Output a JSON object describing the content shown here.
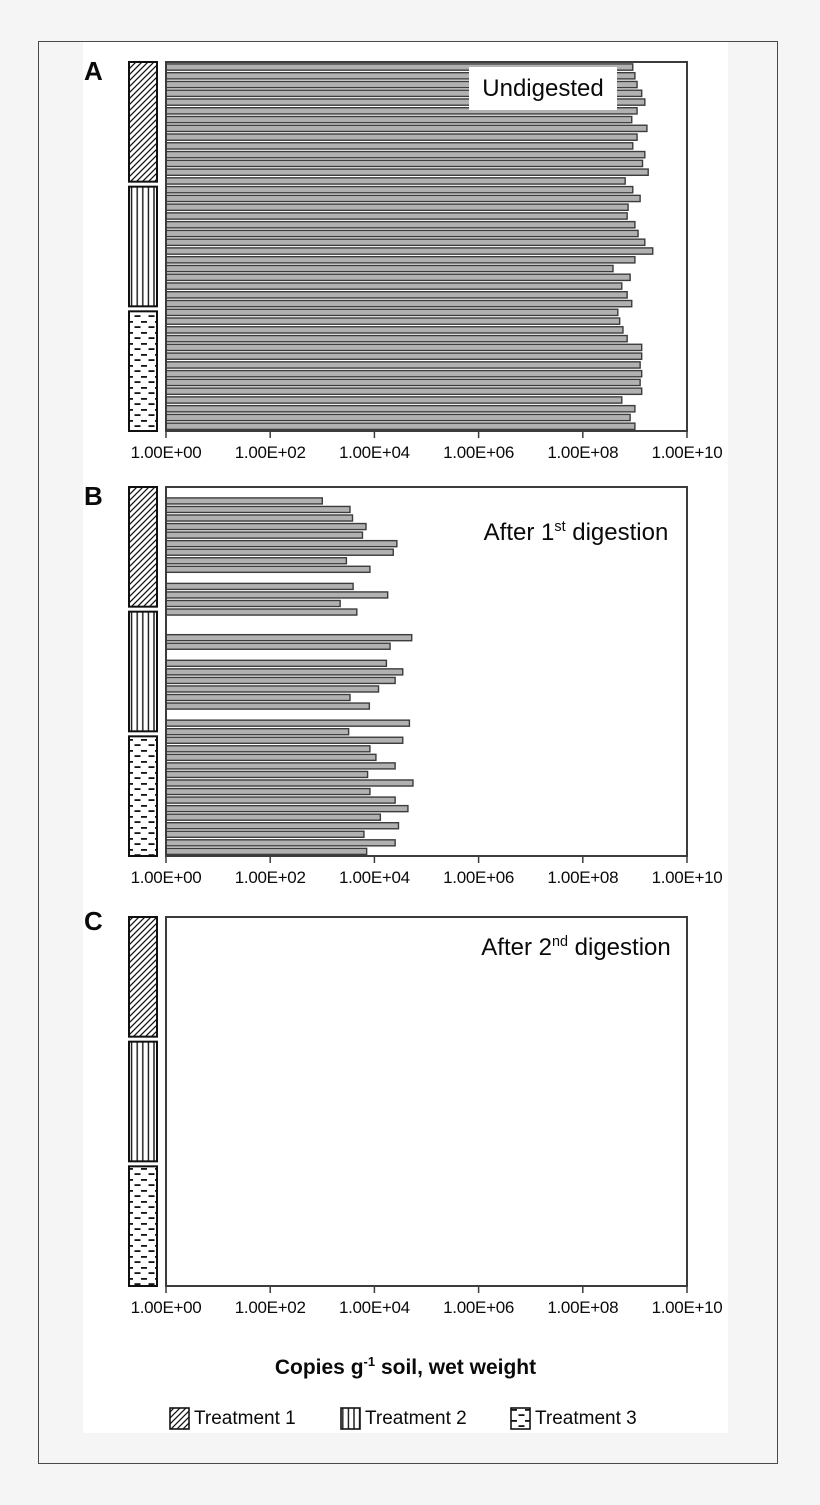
{
  "figure": {
    "panels": [
      {
        "letter": "A",
        "title": {
          "pre": "Undigested",
          "sup": "",
          "post": ""
        }
      },
      {
        "letter": "B",
        "title": {
          "pre": "After 1",
          "sup": "st",
          "post": " digestion"
        }
      },
      {
        "letter": "C",
        "title": {
          "pre": "After 2",
          "sup": "nd",
          "post": " digestion"
        }
      }
    ],
    "axis_title": {
      "pre": "Copies g",
      "sup": "-1",
      "post": " soil, wet weight"
    },
    "legend": [
      {
        "label": "Treatment 1",
        "pattern": "diagonal-hatch"
      },
      {
        "label": "Treatment 2",
        "pattern": "vertical-lines"
      },
      {
        "label": "Treatment 3",
        "pattern": "dashed-dots"
      }
    ],
    "colors": {
      "bar_fill": "#b1b1b1",
      "bar_stroke": "#3c3c3c",
      "frame": "#4a4a4a",
      "background": "#f5f5f6"
    }
  },
  "chart_data": [
    {
      "type": "bar",
      "orientation": "horizontal",
      "title": "Undigested",
      "xscale": "log",
      "xlim": [
        1,
        10000000000.0
      ],
      "xticks": [
        "1.00E+00",
        "1.00E+02",
        "1.00E+04",
        "1.00E+06",
        "1.00E+08",
        "1.00E+10"
      ],
      "xlabel": "Copies g-1 soil, wet weight",
      "grid": false,
      "legend_position": "bottom",
      "groups": [
        {
          "name": "Treatment 1",
          "pattern": "diagonal-hatch",
          "values": [
            910000000.0,
            1000000000.0,
            1100000000.0,
            1350000000.0,
            1550000000.0,
            1100000000.0,
            870000000.0,
            1700000000.0,
            1100000000.0,
            910000000.0,
            1550000000.0,
            1400000000.0,
            1800000000.0,
            650000000.0
          ]
        },
        {
          "name": "Treatment 2",
          "pattern": "vertical-lines",
          "values": [
            910000000.0,
            1260000000.0,
            740000000.0,
            710000000.0,
            1000000000.0,
            1150000000.0,
            1550000000.0,
            2200000000.0,
            1000000000.0,
            380000000.0,
            810000000.0,
            560000000.0,
            710000000.0,
            870000000.0
          ]
        },
        {
          "name": "Treatment 3",
          "pattern": "dashed-dots",
          "values": [
            470000000.0,
            510000000.0,
            590000000.0,
            710000000.0,
            1350000000.0,
            1350000000.0,
            1260000000.0,
            1350000000.0,
            1260000000.0,
            1350000000.0,
            560000000.0,
            1000000000.0,
            810000000.0,
            1000000000.0
          ]
        }
      ]
    },
    {
      "type": "bar",
      "orientation": "horizontal",
      "title": "After 1st digestion",
      "xscale": "log",
      "xlim": [
        1,
        10000000000.0
      ],
      "xticks": [
        "1.00E+00",
        "1.00E+02",
        "1.00E+04",
        "1.00E+06",
        "1.00E+08",
        "1.00E+10"
      ],
      "xlabel": "Copies g-1 soil, wet weight",
      "grid": false,
      "legend_position": "bottom",
      "groups": [
        {
          "name": "Treatment 1",
          "pattern": "diagonal-hatch",
          "values": [
            1000,
            3400,
            3800,
            6900,
            5900,
            27000,
            23000,
            2900,
            8200,
            null,
            3900,
            18000,
            2200,
            4600
          ]
        },
        {
          "name": "Treatment 2",
          "pattern": "vertical-lines",
          "values": [
            null,
            null,
            52000,
            20000,
            null,
            17000,
            35000,
            25000,
            12000,
            3400,
            8000,
            null,
            47000,
            3200
          ]
        },
        {
          "name": "Treatment 3",
          "pattern": "dashed-dots",
          "values": [
            35000,
            8200,
            10700,
            25000,
            7400,
            55000,
            8200,
            25000,
            44000,
            13000,
            29000,
            6300,
            25000,
            7100
          ]
        }
      ]
    },
    {
      "type": "bar",
      "orientation": "horizontal",
      "title": "After 2nd digestion",
      "xscale": "log",
      "xlim": [
        1,
        10000000000.0
      ],
      "xticks": [
        "1.00E+00",
        "1.00E+02",
        "1.00E+04",
        "1.00E+06",
        "1.00E+08",
        "1.00E+10"
      ],
      "xlabel": "Copies g-1 soil, wet weight",
      "grid": false,
      "legend_position": "bottom",
      "groups": [
        {
          "name": "Treatment 1",
          "pattern": "diagonal-hatch",
          "values": [
            null,
            null,
            null,
            null,
            null,
            null,
            null,
            null,
            null,
            null,
            null,
            null,
            null,
            null
          ]
        },
        {
          "name": "Treatment 2",
          "pattern": "vertical-lines",
          "values": [
            null,
            null,
            null,
            null,
            null,
            null,
            null,
            null,
            null,
            null,
            null,
            null,
            null,
            null
          ]
        },
        {
          "name": "Treatment 3",
          "pattern": "dashed-dots",
          "values": [
            null,
            null,
            null,
            null,
            null,
            null,
            null,
            null,
            null,
            null,
            null,
            null,
            null,
            null
          ]
        }
      ]
    }
  ]
}
